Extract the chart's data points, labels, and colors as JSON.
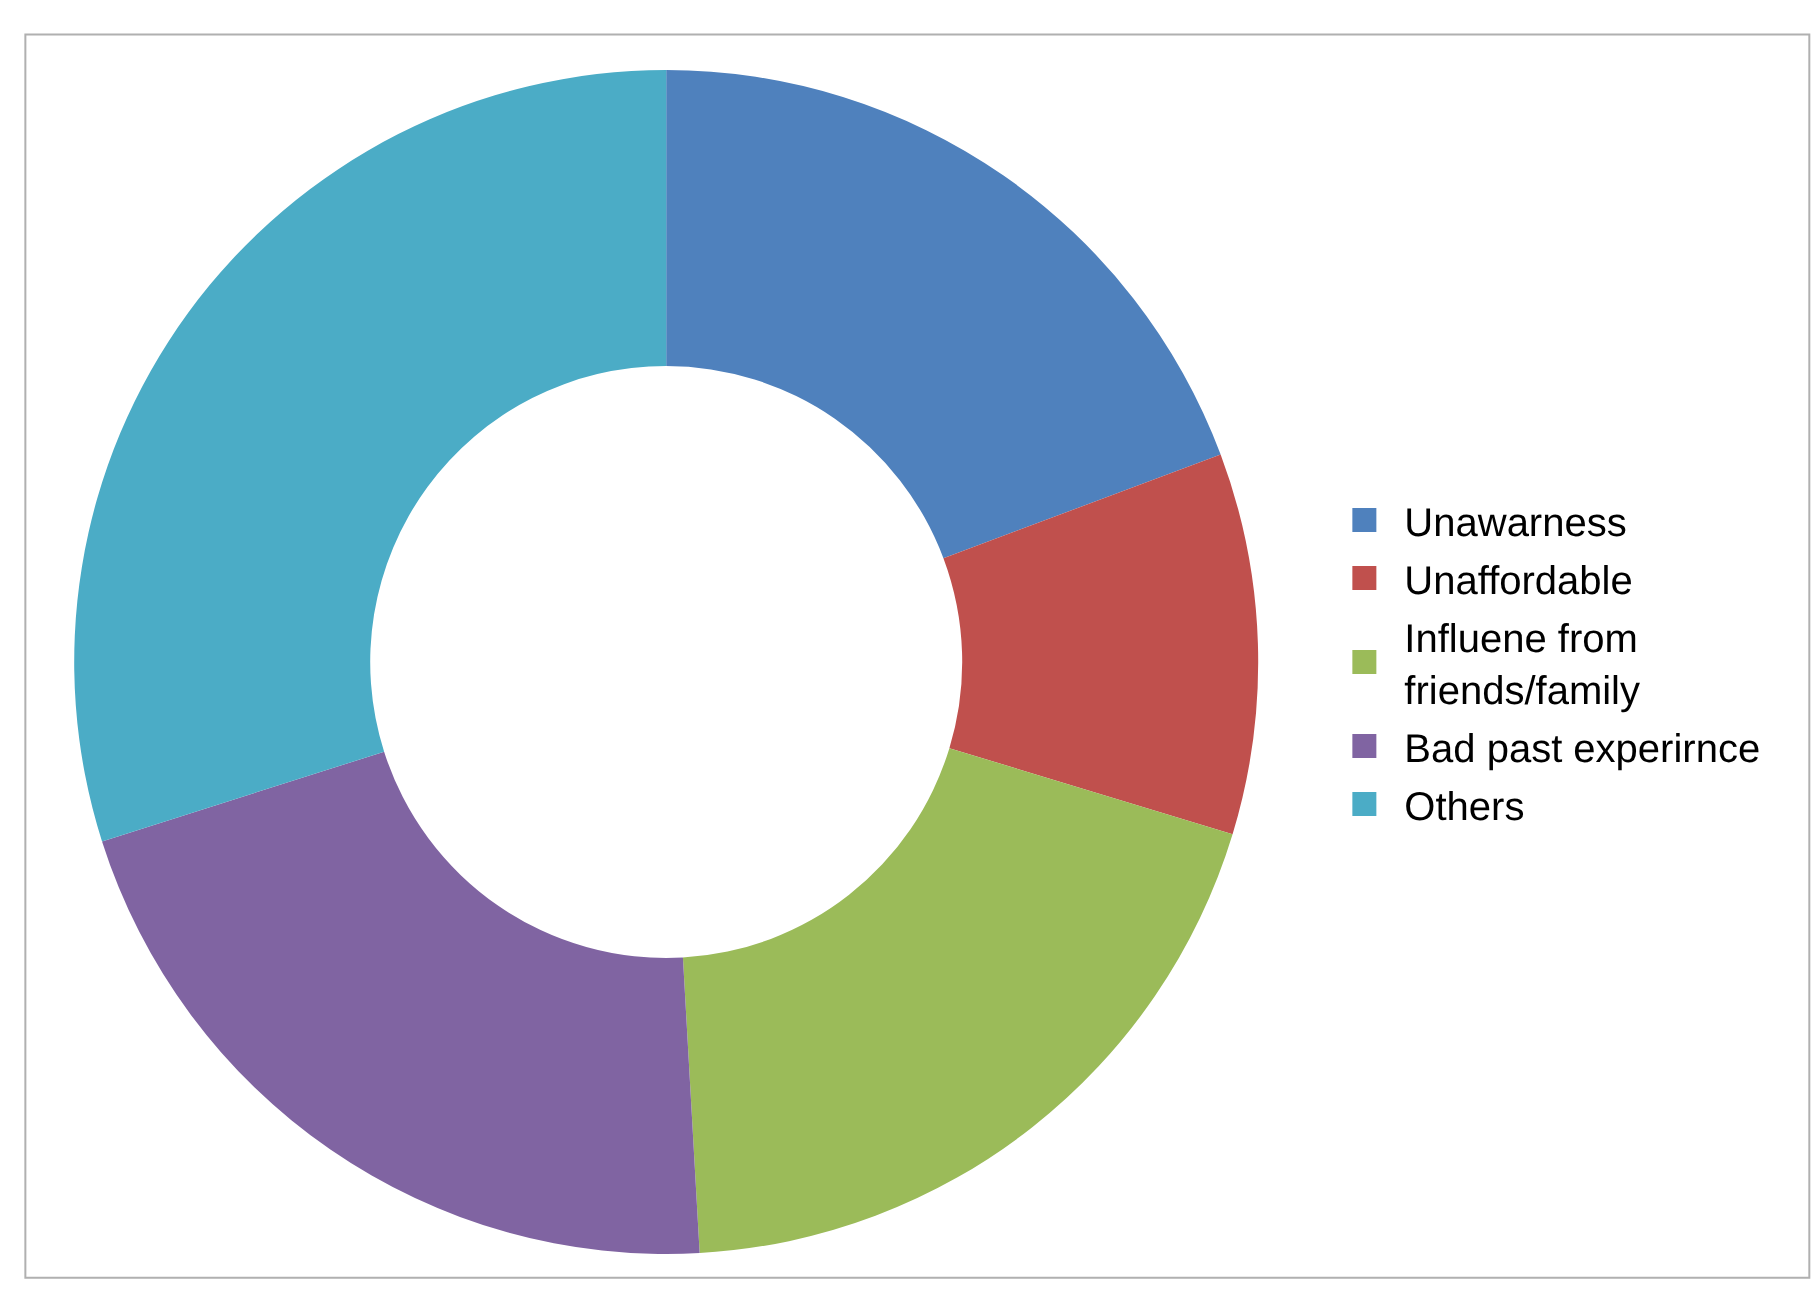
{
  "chart_data": {
    "type": "donut",
    "categories": [
      "Unawarness",
      "Unaffordable",
      "Influene from friends/family",
      "Bad past experirnce",
      "Others"
    ],
    "values": [
      19.3,
      10.4,
      19.4,
      21.0,
      29.9
    ],
    "colors": [
      "#4f81bd",
      "#c0504d",
      "#9bbb59",
      "#8064a2",
      "#4bacc6"
    ],
    "legend": "right"
  }
}
